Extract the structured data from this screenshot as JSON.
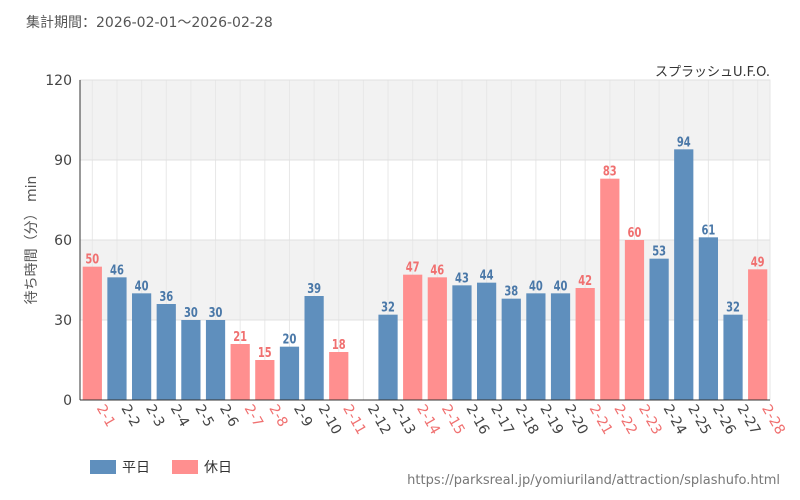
{
  "period": {
    "label": "集計期間：",
    "range": "2026-02-01～2026-02-28"
  },
  "source_url": "https://parksreal.jp/yomiuriland/attraction/splashufo.html",
  "colors": {
    "weekday": "#5f8fbd",
    "holiday": "#ff8f8f",
    "weekday_label": "#4a78a8",
    "holiday_label": "#f07070"
  },
  "chart_data": {
    "type": "bar",
    "title": "スプラッシュU.F.O.",
    "ylabel": "待ち時間（分） min",
    "xlabel": "",
    "ylim": [
      0,
      120
    ],
    "yticks": [
      0,
      30,
      60,
      90,
      120
    ],
    "legend": [
      {
        "key": "weekday",
        "label": "平日"
      },
      {
        "key": "holiday",
        "label": "休日"
      }
    ],
    "categories": [
      "2-1",
      "2-2",
      "2-3",
      "2-4",
      "2-5",
      "2-6",
      "2-7",
      "2-8",
      "2-9",
      "2-10",
      "2-11",
      "2-12",
      "2-13",
      "2-14",
      "2-15",
      "2-16",
      "2-17",
      "2-18",
      "2-19",
      "2-20",
      "2-21",
      "2-22",
      "2-23",
      "2-24",
      "2-25",
      "2-26",
      "2-27",
      "2-28"
    ],
    "values": [
      50,
      46,
      40,
      36,
      30,
      30,
      21,
      15,
      20,
      39,
      18,
      null,
      32,
      47,
      46,
      43,
      44,
      38,
      40,
      40,
      42,
      83,
      60,
      53,
      94,
      61,
      32,
      49
    ],
    "day_type": [
      "holiday",
      "weekday",
      "weekday",
      "weekday",
      "weekday",
      "weekday",
      "holiday",
      "holiday",
      "weekday",
      "weekday",
      "holiday",
      "weekday",
      "weekday",
      "holiday",
      "holiday",
      "weekday",
      "weekday",
      "weekday",
      "weekday",
      "weekday",
      "holiday",
      "holiday",
      "holiday",
      "weekday",
      "weekday",
      "weekday",
      "weekday",
      "holiday"
    ]
  }
}
